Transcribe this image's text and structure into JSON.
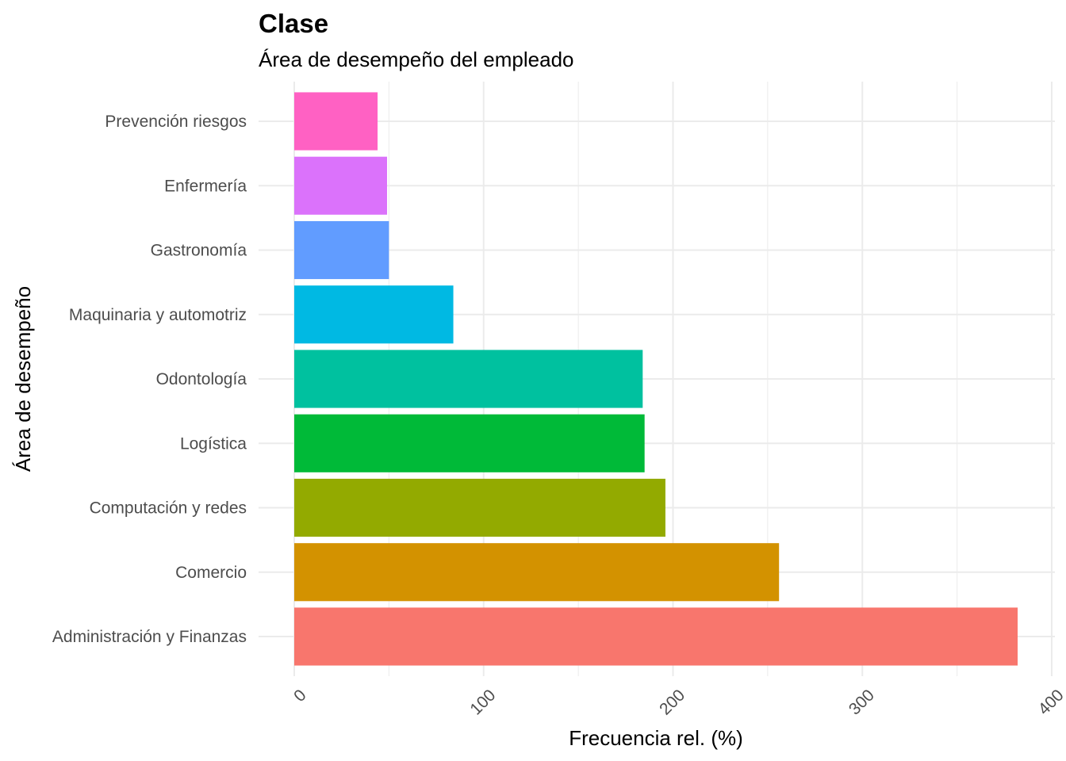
{
  "chart_data": {
    "type": "bar",
    "orientation": "horizontal",
    "title": "Clase",
    "subtitle": "Área de desempeño del empleado",
    "xlabel": "Frecuencia rel. (%)",
    "ylabel": "Área de desempeño",
    "xlim": [
      0,
      400
    ],
    "x_ticks": [
      "0",
      "100",
      "200",
      "300",
      "400"
    ],
    "x_tick_values": [
      0,
      100,
      200,
      300,
      400
    ],
    "grid": true,
    "legend": "none",
    "categories": [
      "Administración y Finanzas",
      "Comercio",
      "Computación y redes",
      "Logística",
      "Odontología",
      "Maquinaria y automotriz",
      "Gastronomía",
      "Enfermería",
      "Prevención riesgos"
    ],
    "values": [
      382,
      256,
      196,
      185,
      184,
      84,
      50,
      49,
      44
    ],
    "colors": [
      "#F8766D",
      "#D39200",
      "#93AA00",
      "#00BA38",
      "#00C19F",
      "#00B9E3",
      "#619CFF",
      "#DB72FB",
      "#FF61C3"
    ]
  }
}
